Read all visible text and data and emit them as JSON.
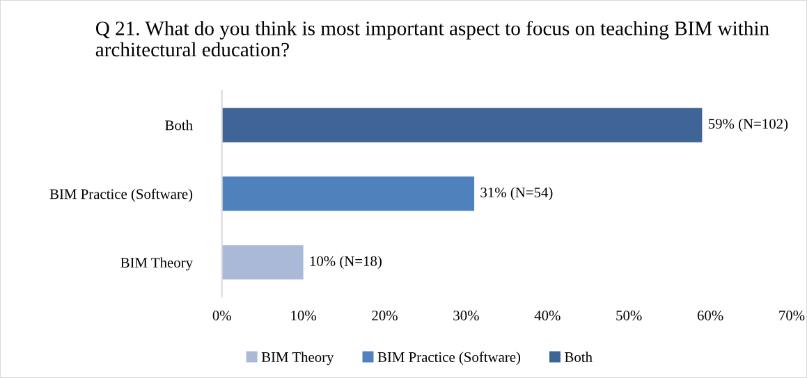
{
  "chart_data": {
    "type": "bar",
    "orientation": "horizontal",
    "title": "Q 21. What do you think is most important aspect to focus on teaching BIM within architectural education?",
    "categories": [
      "Both",
      "BIM Practice (Software)",
      "BIM Theory"
    ],
    "series": [
      {
        "name": "BIM Theory",
        "color": "#aab9d7",
        "values": [
          null,
          null,
          10
        ],
        "value_labels": [
          null,
          null,
          "10% (N=18)"
        ]
      },
      {
        "name": "BIM Practice (Software)",
        "color": "#4f81bd",
        "values": [
          null,
          31,
          null
        ],
        "value_labels": [
          null,
          "31% (N=54)",
          null
        ]
      },
      {
        "name": "Both",
        "color": "#3f6597",
        "values": [
          59,
          null,
          null
        ],
        "value_labels": [
          "59% (N=102)",
          null,
          null
        ]
      }
    ],
    "xlim": [
      0,
      70
    ],
    "xticks": [
      {
        "value": 0,
        "label": "0%"
      },
      {
        "value": 10,
        "label": "10%"
      },
      {
        "value": 20,
        "label": "20%"
      },
      {
        "value": 30,
        "label": "30%"
      },
      {
        "value": 40,
        "label": "40%"
      },
      {
        "value": 50,
        "label": "50%"
      },
      {
        "value": 60,
        "label": "60%"
      },
      {
        "value": 70,
        "label": "70%"
      }
    ],
    "grid": false,
    "legend": "bottom"
  }
}
